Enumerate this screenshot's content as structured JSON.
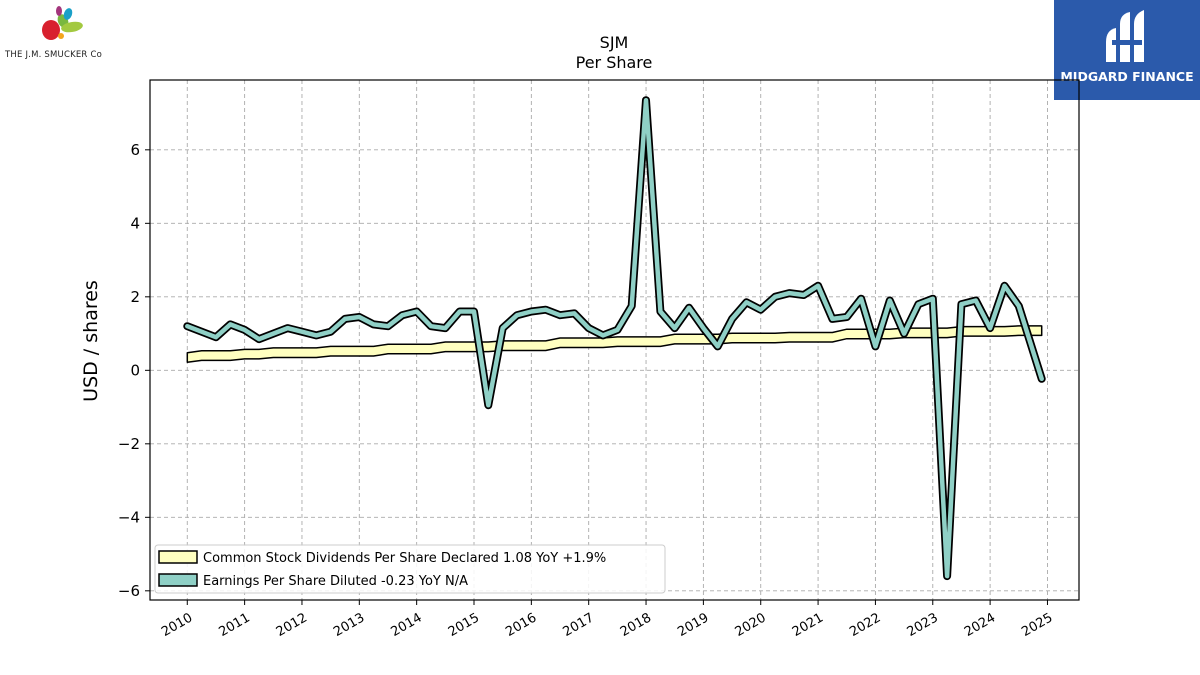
{
  "logos": {
    "left_caption": "THE J.M. SMUCKER Co",
    "right_name": "MIDGARD FINANCE"
  },
  "chart_data": {
    "type": "line",
    "title": "SJM",
    "subtitle": "Per  Share",
    "xlabel": "",
    "ylabel": "USD / shares",
    "xlim": [
      2009.35,
      2025.55
    ],
    "ylim": [
      -6.25,
      7.9
    ],
    "x_ticks": [
      "2010",
      "2011",
      "2012",
      "2013",
      "2014",
      "2015",
      "2016",
      "2017",
      "2018",
      "2019",
      "2020",
      "2021",
      "2022",
      "2023",
      "2024",
      "2025"
    ],
    "y_ticks": [
      -6,
      -4,
      -2,
      0,
      2,
      4,
      6
    ],
    "y_tick_labels": [
      "−6",
      "−4",
      "−2",
      "0",
      "2",
      "4",
      "6"
    ],
    "grid": true,
    "legend_position": "lower-left",
    "series": [
      {
        "name": "Common Stock Dividends Per Share Declared",
        "legend_label": "Common Stock Dividends Per Share Declared  1.08 YoY +1.9%",
        "color": "#ffffc0",
        "x": [
          2010.0,
          2010.25,
          2010.5,
          2010.75,
          2011.0,
          2011.25,
          2011.5,
          2011.75,
          2012.0,
          2012.25,
          2012.5,
          2012.75,
          2013.0,
          2013.25,
          2013.5,
          2013.75,
          2014.0,
          2014.25,
          2014.5,
          2014.75,
          2015.0,
          2015.25,
          2015.5,
          2015.75,
          2016.0,
          2016.25,
          2016.5,
          2016.75,
          2017.0,
          2017.25,
          2017.5,
          2017.75,
          2018.0,
          2018.25,
          2018.5,
          2018.75,
          2019.0,
          2019.25,
          2019.5,
          2019.75,
          2020.0,
          2020.25,
          2020.5,
          2020.75,
          2021.0,
          2021.25,
          2021.5,
          2021.75,
          2022.0,
          2022.25,
          2022.5,
          2022.75,
          2023.0,
          2023.25,
          2023.5,
          2023.75,
          2024.0,
          2024.25,
          2024.5,
          2024.9
        ],
        "values": [
          0.35,
          0.4,
          0.4,
          0.4,
          0.44,
          0.44,
          0.48,
          0.48,
          0.48,
          0.48,
          0.52,
          0.52,
          0.52,
          0.52,
          0.58,
          0.58,
          0.58,
          0.58,
          0.64,
          0.64,
          0.64,
          0.64,
          0.67,
          0.67,
          0.67,
          0.67,
          0.75,
          0.75,
          0.75,
          0.75,
          0.78,
          0.78,
          0.78,
          0.78,
          0.85,
          0.85,
          0.85,
          0.85,
          0.88,
          0.88,
          0.88,
          0.88,
          0.9,
          0.9,
          0.9,
          0.9,
          0.99,
          0.99,
          0.99,
          0.99,
          1.02,
          1.02,
          1.02,
          1.02,
          1.06,
          1.06,
          1.06,
          1.06,
          1.08,
          1.08
        ]
      },
      {
        "name": "Earnings Per Share Diluted",
        "legend_label": "Earnings Per Share Diluted  -0.23 YoY N/A",
        "color": "#8fd0c6",
        "x": [
          2010.0,
          2010.25,
          2010.5,
          2010.75,
          2011.0,
          2011.25,
          2011.5,
          2011.75,
          2012.0,
          2012.25,
          2012.5,
          2012.75,
          2013.0,
          2013.25,
          2013.5,
          2013.75,
          2014.0,
          2014.25,
          2014.5,
          2014.75,
          2015.0,
          2015.25,
          2015.5,
          2015.75,
          2016.0,
          2016.25,
          2016.5,
          2016.75,
          2017.0,
          2017.25,
          2017.5,
          2017.75,
          2018.0,
          2018.25,
          2018.5,
          2018.75,
          2019.0,
          2019.25,
          2019.5,
          2019.75,
          2020.0,
          2020.25,
          2020.5,
          2020.75,
          2021.0,
          2021.25,
          2021.5,
          2021.75,
          2022.0,
          2022.25,
          2022.5,
          2022.75,
          2023.0,
          2023.25,
          2023.5,
          2023.75,
          2024.0,
          2024.25,
          2024.5,
          2024.9
        ],
        "values": [
          1.2,
          1.05,
          0.9,
          1.25,
          1.1,
          0.85,
          1.0,
          1.15,
          1.05,
          0.95,
          1.05,
          1.4,
          1.45,
          1.25,
          1.2,
          1.5,
          1.6,
          1.2,
          1.15,
          1.6,
          1.6,
          -0.95,
          1.15,
          1.5,
          1.6,
          1.65,
          1.5,
          1.55,
          1.15,
          0.95,
          1.1,
          1.75,
          7.35,
          1.6,
          1.15,
          1.7,
          1.15,
          0.65,
          1.4,
          1.85,
          1.65,
          2.0,
          2.1,
          2.05,
          2.3,
          1.4,
          1.45,
          1.95,
          0.65,
          1.9,
          1.0,
          1.8,
          1.95,
          -5.6,
          1.8,
          1.9,
          1.15,
          2.3,
          1.75,
          -0.23
        ]
      }
    ]
  }
}
